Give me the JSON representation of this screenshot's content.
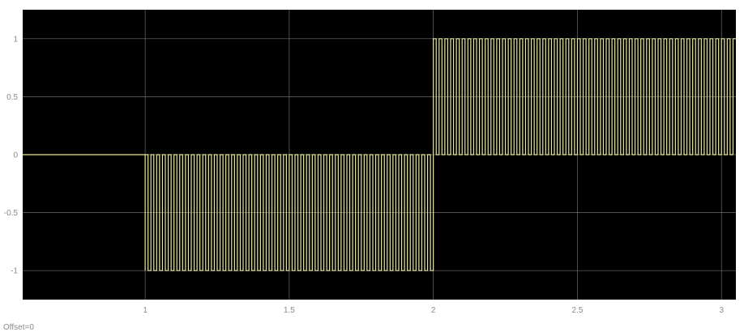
{
  "chart_data": {
    "type": "line",
    "title": "",
    "xlabel": "",
    "ylabel": "",
    "xlim": [
      0.575,
      3.05
    ],
    "ylim": [
      -1.25,
      1.25
    ],
    "x_ticks": [
      "1",
      "1.5",
      "2",
      "2.5",
      "3"
    ],
    "x_tick_values": [
      1,
      1.5,
      2,
      2.5,
      3
    ],
    "y_ticks": [
      "1",
      "0.5",
      "0",
      "-0.5",
      "-1"
    ],
    "y_tick_values": [
      1,
      0.5,
      0,
      -0.5,
      -1
    ],
    "grid": true,
    "background_color": "#000000",
    "grid_color": "#6e6e6e",
    "line_color": "#e8e89a",
    "series": [
      {
        "segments": [
          {
            "x_start": 0.575,
            "x_end": 1.0,
            "mode": "constant",
            "value": 0
          },
          {
            "x_start": 1.0,
            "x_end": 2.0,
            "mode": "square",
            "low": -1,
            "high": 0,
            "period": 0.02
          },
          {
            "x_start": 2.0,
            "x_end": 3.05,
            "mode": "square",
            "low": 0,
            "high": 1,
            "period": 0.02
          }
        ]
      }
    ]
  },
  "footer": {
    "offset_label": "Offset=0"
  }
}
